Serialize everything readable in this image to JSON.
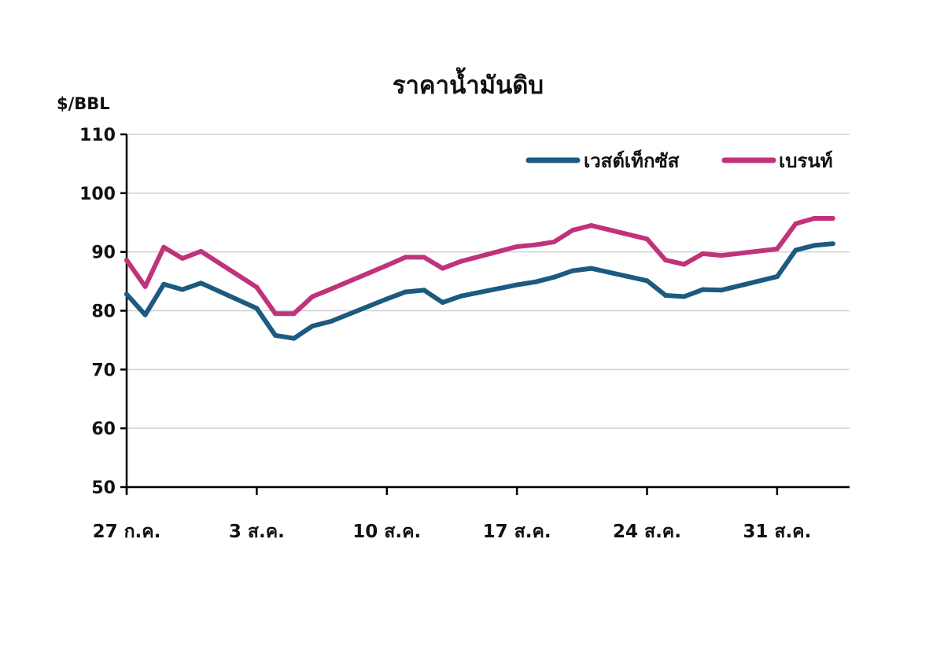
{
  "chart_data": {
    "type": "line",
    "title": "ราคาน้ำมันดิบ",
    "ylabel": "$/BBL",
    "xlabel": "",
    "ylim": [
      50,
      110
    ],
    "yticks": [
      "110",
      "100",
      "90",
      "80",
      "70",
      "60",
      "50"
    ],
    "yticks_values": [
      110,
      100,
      90,
      80,
      70,
      60,
      50
    ],
    "grid": true,
    "legend": "top-right",
    "xtick_labels": [
      "27 ก.ค.",
      "3 ส.ค.",
      "10 ส.ค.",
      "17 ส.ค.",
      "24 ส.ค.",
      "31 ส.ค."
    ],
    "xtick_positions": [
      0,
      7,
      14,
      21,
      28,
      35
    ],
    "x": [
      0,
      1,
      2,
      3,
      4,
      7,
      8,
      9,
      10,
      11,
      14,
      15,
      16,
      17,
      18,
      21,
      22,
      23,
      24,
      25,
      28,
      29,
      30,
      31,
      32,
      35,
      36,
      37,
      38
    ],
    "series": [
      {
        "name": "เวสต์เท็กซัส",
        "color": "#1c5a80",
        "values": [
          82.8,
          79.3,
          84.5,
          83.6,
          84.7,
          80.4,
          75.8,
          75.3,
          77.4,
          78.2,
          82.0,
          83.2,
          83.5,
          81.4,
          82.5,
          84.4,
          84.9,
          85.7,
          86.8,
          87.2,
          85.1,
          82.6,
          82.4,
          83.6,
          83.5,
          85.8,
          90.3,
          91.1,
          91.4
        ]
      },
      {
        "name": "เบรนท์",
        "color": "#c0337a",
        "values": [
          88.6,
          84.1,
          90.8,
          88.9,
          90.1,
          84.0,
          79.5,
          79.5,
          82.4,
          83.7,
          87.7,
          89.1,
          89.1,
          87.2,
          88.4,
          90.9,
          91.2,
          91.7,
          93.7,
          94.5,
          92.2,
          88.6,
          87.9,
          89.7,
          89.4,
          90.5,
          94.8,
          95.7,
          95.7
        ]
      }
    ]
  }
}
